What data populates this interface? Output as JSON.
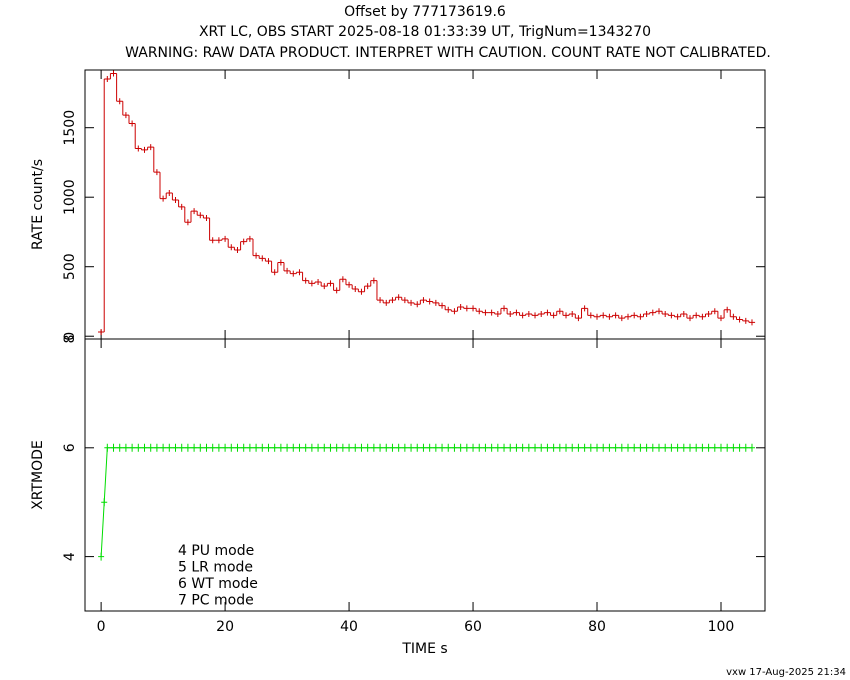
{
  "title": "Offset by 777173619.6",
  "subtitle": [
    "XRT LC, OBS START 2025-08-18 01:33:39 UT, TrigNum=1343270",
    "WARNING: RAW DATA PRODUCT. INTERPRET WITH CAUTION. COUNT RATE NOT CALIBRATED."
  ],
  "footer": "vxw 17-Aug-2025 21:34",
  "chart_data": [
    {
      "type": "line",
      "drawstyle": "steps",
      "ylabel": "RATE  count/s",
      "color": "#cc0000",
      "xlim": [
        -2.6,
        107.1
      ],
      "xticks": [
        0,
        20,
        40,
        60,
        80,
        100
      ],
      "ylim": [
        -20,
        1915
      ],
      "yticks": [
        0,
        500,
        1000,
        1500
      ],
      "x": [
        0,
        1,
        2,
        3,
        4,
        5,
        6,
        7,
        8,
        9,
        10,
        11,
        12,
        13,
        14,
        15,
        16,
        17,
        18,
        19,
        20,
        21,
        22,
        23,
        24,
        25,
        26,
        27,
        28,
        29,
        30,
        31,
        32,
        33,
        34,
        35,
        36,
        37,
        38,
        39,
        40,
        41,
        42,
        43,
        44,
        45,
        46,
        47,
        48,
        49,
        50,
        51,
        52,
        53,
        54,
        55,
        56,
        57,
        58,
        59,
        60,
        61,
        62,
        63,
        64,
        65,
        66,
        67,
        68,
        69,
        70,
        71,
        72,
        73,
        74,
        75,
        76,
        77,
        78,
        79,
        80,
        81,
        82,
        83,
        84,
        85,
        86,
        87,
        88,
        89,
        90,
        91,
        92,
        93,
        94,
        95,
        96,
        97,
        98,
        99,
        100,
        101,
        102,
        103,
        104,
        105
      ],
      "values": [
        30,
        1850,
        1890,
        1690,
        1590,
        1530,
        1350,
        1340,
        1360,
        1180,
        990,
        1030,
        980,
        930,
        820,
        900,
        870,
        850,
        690,
        690,
        700,
        640,
        620,
        680,
        700,
        580,
        560,
        540,
        460,
        530,
        470,
        450,
        460,
        400,
        380,
        390,
        360,
        380,
        330,
        410,
        370,
        340,
        320,
        360,
        400,
        260,
        240,
        260,
        280,
        260,
        240,
        230,
        260,
        250,
        240,
        220,
        190,
        180,
        210,
        200,
        200,
        180,
        170,
        170,
        160,
        200,
        160,
        170,
        150,
        160,
        150,
        160,
        170,
        150,
        180,
        150,
        160,
        130,
        200,
        150,
        140,
        150,
        140,
        150,
        130,
        140,
        150,
        140,
        160,
        170,
        180,
        160,
        150,
        140,
        160,
        130,
        150,
        140,
        160,
        180,
        130,
        190,
        140,
        120,
        110,
        100
      ]
    },
    {
      "type": "line",
      "drawstyle": "default",
      "ylabel": "XRTMODE",
      "xlabel": "TIME  s",
      "color": "#00dd00",
      "xlim": [
        -2.6,
        107.1
      ],
      "xticks": [
        0,
        20,
        40,
        60,
        80,
        100
      ],
      "ylim": [
        3,
        8
      ],
      "yticks": [
        4,
        6,
        8
      ],
      "annotations": [
        "4 PU mode",
        "5 LR mode",
        "6 WT mode",
        "7 PC mode"
      ],
      "x": [
        0,
        0.5,
        1,
        2,
        3,
        4,
        5,
        6,
        7,
        8,
        9,
        10,
        11,
        12,
        13,
        14,
        15,
        16,
        17,
        18,
        19,
        20,
        21,
        22,
        23,
        24,
        25,
        26,
        27,
        28,
        29,
        30,
        31,
        32,
        33,
        34,
        35,
        36,
        37,
        38,
        39,
        40,
        41,
        42,
        43,
        44,
        45,
        46,
        47,
        48,
        49,
        50,
        51,
        52,
        53,
        54,
        55,
        56,
        57,
        58,
        59,
        60,
        61,
        62,
        63,
        64,
        65,
        66,
        67,
        68,
        69,
        70,
        71,
        72,
        73,
        74,
        75,
        76,
        77,
        78,
        79,
        80,
        81,
        82,
        83,
        84,
        85,
        86,
        87,
        88,
        89,
        90,
        91,
        92,
        93,
        94,
        95,
        96,
        97,
        98,
        99,
        100,
        101,
        102,
        103,
        104,
        105
      ],
      "values": [
        4,
        5,
        6,
        6,
        6,
        6,
        6,
        6,
        6,
        6,
        6,
        6,
        6,
        6,
        6,
        6,
        6,
        6,
        6,
        6,
        6,
        6,
        6,
        6,
        6,
        6,
        6,
        6,
        6,
        6,
        6,
        6,
        6,
        6,
        6,
        6,
        6,
        6,
        6,
        6,
        6,
        6,
        6,
        6,
        6,
        6,
        6,
        6,
        6,
        6,
        6,
        6,
        6,
        6,
        6,
        6,
        6,
        6,
        6,
        6,
        6,
        6,
        6,
        6,
        6,
        6,
        6,
        6,
        6,
        6,
        6,
        6,
        6,
        6,
        6,
        6,
        6,
        6,
        6,
        6,
        6,
        6,
        6,
        6,
        6,
        6,
        6,
        6,
        6,
        6,
        6,
        6,
        6,
        6,
        6,
        6,
        6,
        6,
        6,
        6,
        6,
        6,
        6,
        6,
        6,
        6,
        6
      ]
    }
  ]
}
